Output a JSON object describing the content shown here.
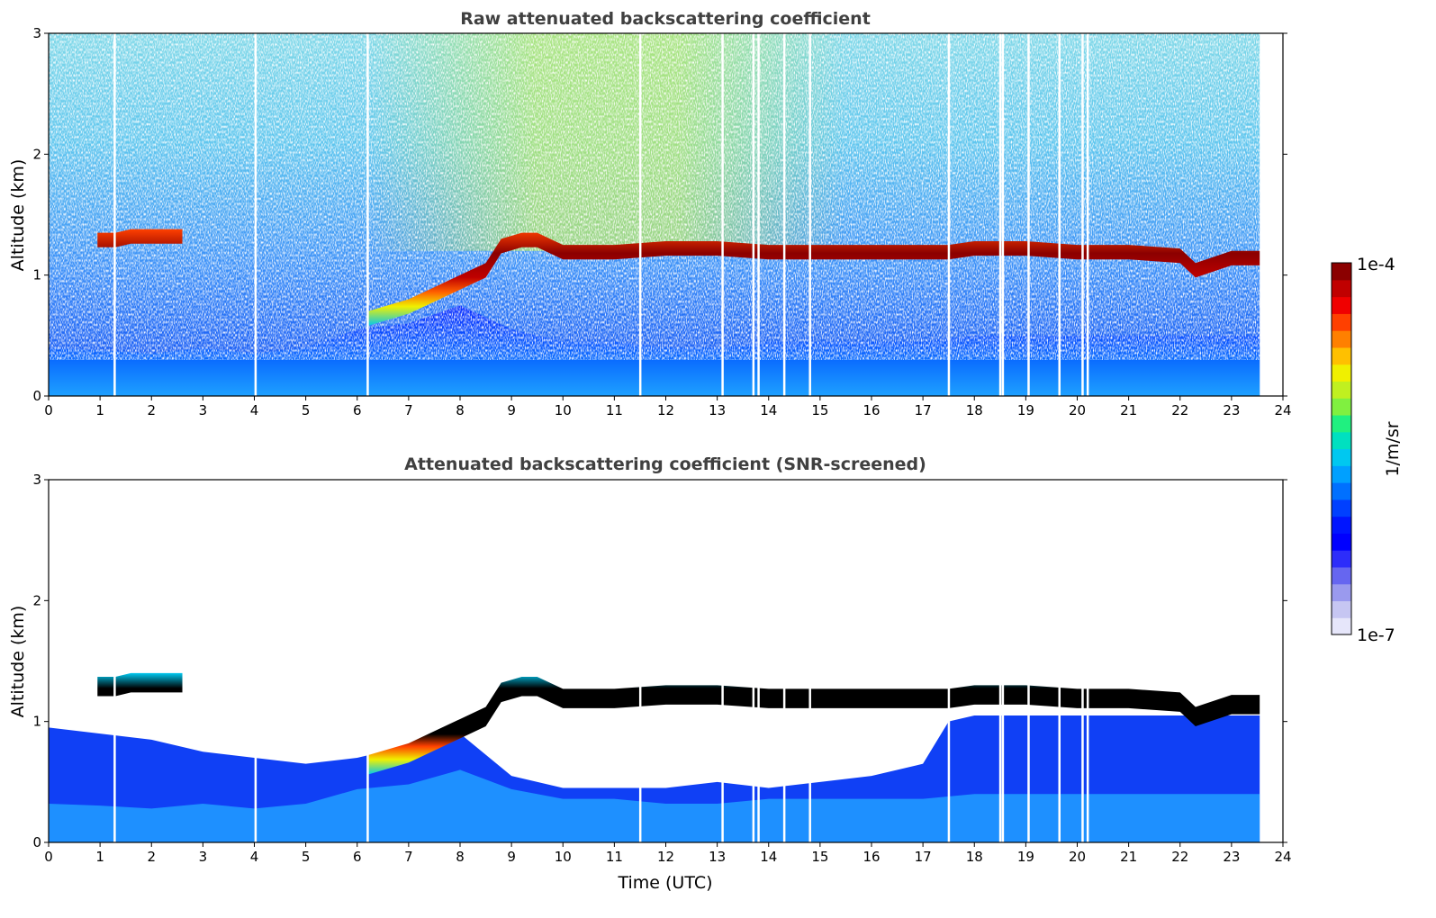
{
  "figure": {
    "colorbar": {
      "max_label": "1e-4",
      "min_label": "1e-7",
      "unit_label": "1/m/sr",
      "colors": [
        "#e6e6fa",
        "#c6c6f2",
        "#9a9aee",
        "#6666f0",
        "#2d2dfa",
        "#0000ff",
        "#0015ff",
        "#0040ff",
        "#0070ff",
        "#00a0ff",
        "#00c8f0",
        "#00e0c0",
        "#20f080",
        "#80f040",
        "#c0f020",
        "#f0f000",
        "#ffc000",
        "#ff8000",
        "#ff4000",
        "#f00000",
        "#c00000",
        "#8b0000"
      ]
    }
  },
  "chart_data": [
    {
      "type": "heatmap",
      "title": "Raw attenuated backscattering coefficient",
      "xlabel": "",
      "ylabel": "Altitude (km)",
      "xlim": [
        0,
        24
      ],
      "ylim": [
        0,
        3
      ],
      "x_ticks": [
        "0",
        "1",
        "2",
        "3",
        "4",
        "5",
        "6",
        "7",
        "8",
        "9",
        "10",
        "11",
        "12",
        "13",
        "14",
        "15",
        "16",
        "17",
        "18",
        "19",
        "20",
        "21",
        "22",
        "23",
        "24"
      ],
      "y_ticks": [
        "0",
        "1",
        "2",
        "3"
      ],
      "data_end_time": 23.55,
      "cloud_layer": {
        "time": [
          0.95,
          1.3,
          1.6,
          2.0,
          2.3,
          2.6,
          6.2,
          7.0,
          7.5,
          8.0,
          8.5,
          8.8,
          9.2,
          9.5,
          10.0,
          10.5,
          11.0,
          12.0,
          13.0,
          14.0,
          15.0,
          16.0,
          17.0,
          17.5,
          18.0,
          19.0,
          20.0,
          21.0,
          22.0,
          22.3,
          23.0,
          23.55
        ],
        "base_altitude": [
          1.25,
          1.25,
          1.28,
          1.28,
          1.28,
          1.28,
          0.6,
          0.7,
          0.8,
          0.9,
          1.0,
          1.2,
          1.25,
          1.25,
          1.15,
          1.15,
          1.15,
          1.18,
          1.18,
          1.15,
          1.15,
          1.15,
          1.15,
          1.15,
          1.18,
          1.18,
          1.15,
          1.15,
          1.12,
          1.0,
          1.1,
          1.1
        ]
      },
      "boundary_layer_top": {
        "time": [
          0,
          1,
          2,
          3,
          4,
          5,
          6,
          7,
          8,
          9,
          10,
          11,
          12,
          13,
          14,
          15,
          16,
          17,
          18,
          19,
          20,
          21,
          22,
          23,
          23.55
        ],
        "altitude": [
          0.4,
          0.38,
          0.35,
          0.4,
          0.35,
          0.4,
          0.55,
          0.6,
          0.75,
          0.55,
          0.45,
          0.45,
          0.4,
          0.4,
          0.45,
          0.45,
          0.45,
          0.45,
          0.5,
          0.5,
          0.5,
          0.5,
          0.5,
          0.5,
          0.5
        ]
      },
      "data_gaps_time": [
        1.28,
        4.02,
        6.2,
        11.5,
        13.1,
        13.7,
        13.8,
        14.3,
        14.8,
        17.5,
        18.5,
        18.55,
        19.05,
        19.65,
        20.1,
        20.2
      ]
    },
    {
      "type": "heatmap",
      "title": "Attenuated backscattering coefficient (SNR-screened)",
      "xlabel": "Time (UTC)",
      "ylabel": "Altitude (km)",
      "xlim": [
        0,
        24
      ],
      "ylim": [
        0,
        3
      ],
      "x_ticks": [
        "0",
        "1",
        "2",
        "3",
        "4",
        "5",
        "6",
        "7",
        "8",
        "9",
        "10",
        "11",
        "12",
        "13",
        "14",
        "15",
        "16",
        "17",
        "18",
        "19",
        "20",
        "21",
        "22",
        "23",
        "24"
      ],
      "y_ticks": [
        "0",
        "1",
        "2",
        "3"
      ],
      "data_end_time": 23.55,
      "screened_top": {
        "time": [
          0,
          1,
          2,
          3,
          4,
          5,
          6,
          6.5,
          7,
          8,
          9,
          10,
          11,
          12,
          13,
          14,
          15,
          16,
          17,
          17.5,
          18,
          19,
          20,
          21,
          22,
          23,
          23.55
        ],
        "altitude": [
          0.95,
          0.9,
          0.85,
          0.75,
          0.7,
          0.65,
          0.7,
          0.75,
          0.8,
          0.9,
          0.55,
          0.45,
          0.45,
          0.45,
          0.5,
          0.45,
          0.5,
          0.55,
          0.65,
          1.0,
          1.05,
          1.05,
          1.05,
          1.05,
          1.05,
          1.05,
          1.05
        ]
      }
    }
  ]
}
